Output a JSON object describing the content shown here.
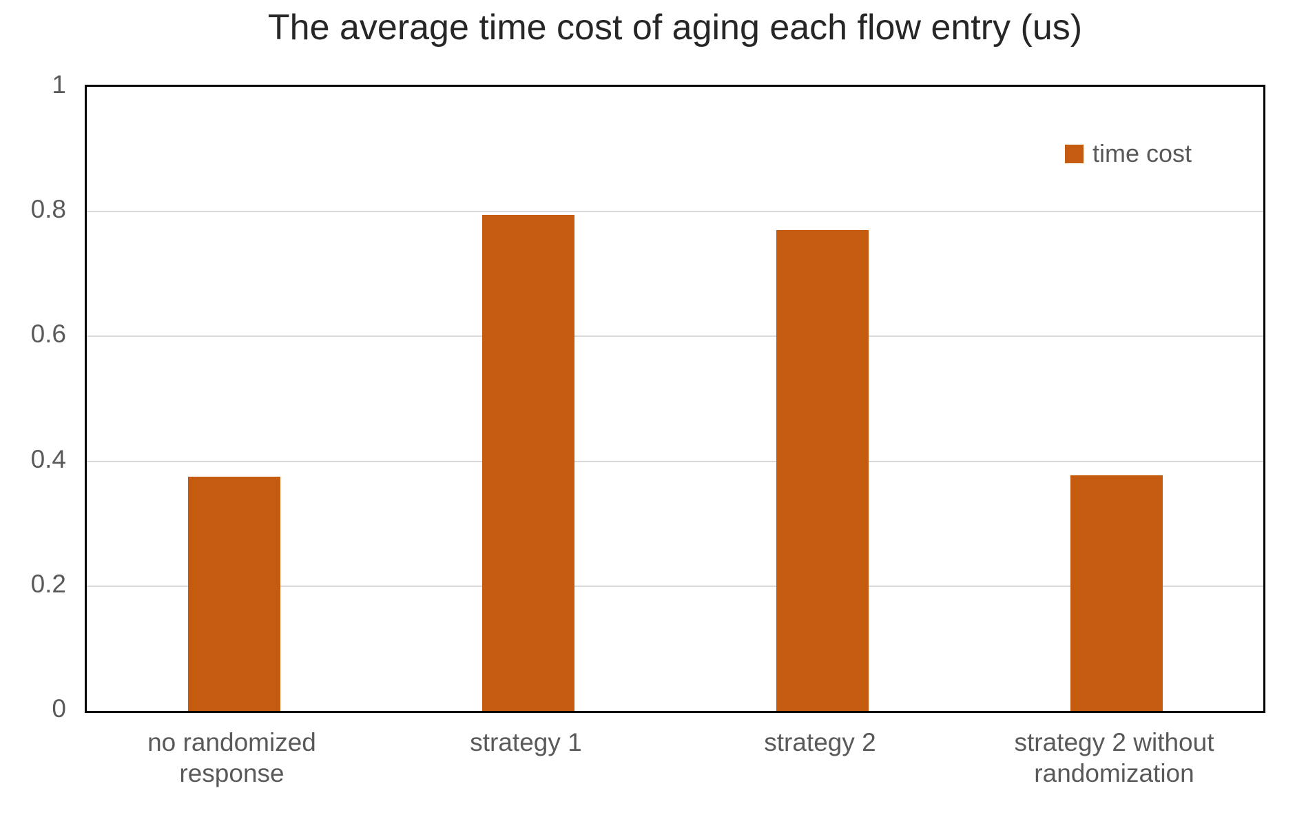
{
  "colors": {
    "bar": "#C55A11",
    "gridline": "#D9D9D9",
    "axis_border": "#000000",
    "tick_text": "#595959",
    "title_text": "#262626"
  },
  "legend": {
    "label": "time cost",
    "swatch_icon": "square-swatch-icon"
  },
  "chart_data": {
    "type": "bar",
    "title": "The average time cost of aging each flow entry (us)",
    "categories": [
      "no randomized response",
      "strategy 1",
      "strategy 2",
      "strategy 2 without randomization"
    ],
    "series": [
      {
        "name": "time cost",
        "values": [
          0.375,
          0.795,
          0.77,
          0.377
        ]
      }
    ],
    "xlabel": "",
    "ylabel": "",
    "ylim": [
      0,
      1
    ],
    "ytick_values": [
      0,
      0.2,
      0.4,
      0.6,
      0.8,
      1
    ],
    "ytick_labels": [
      "0",
      "0.2",
      "0.4",
      "0.6",
      "0.8",
      "1"
    ],
    "grid": true,
    "legend_position": "top-right-inside",
    "plot_border": "black-box"
  }
}
